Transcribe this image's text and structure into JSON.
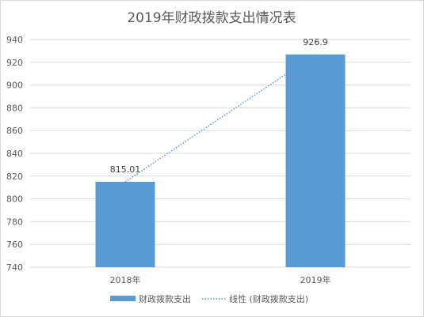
{
  "chart_data": {
    "type": "bar",
    "title": "2019年财政拨款支出情况表",
    "categories": [
      "2018年",
      "2019年"
    ],
    "series": [
      {
        "name": "财政拨款支出",
        "values": [
          815.01,
          926.9
        ],
        "color": "#5b9bd5"
      }
    ],
    "trendline": {
      "name": "线性 (财政拨款支出)",
      "style": "dotted",
      "color": "#5b9bd5"
    },
    "data_labels": [
      "815.01",
      "926.9"
    ],
    "ylim": [
      740,
      940
    ],
    "yticks": [
      740,
      760,
      780,
      800,
      820,
      840,
      860,
      880,
      900,
      920,
      940
    ],
    "grid": true,
    "legend_position": "bottom",
    "xlabel": "",
    "ylabel": ""
  }
}
